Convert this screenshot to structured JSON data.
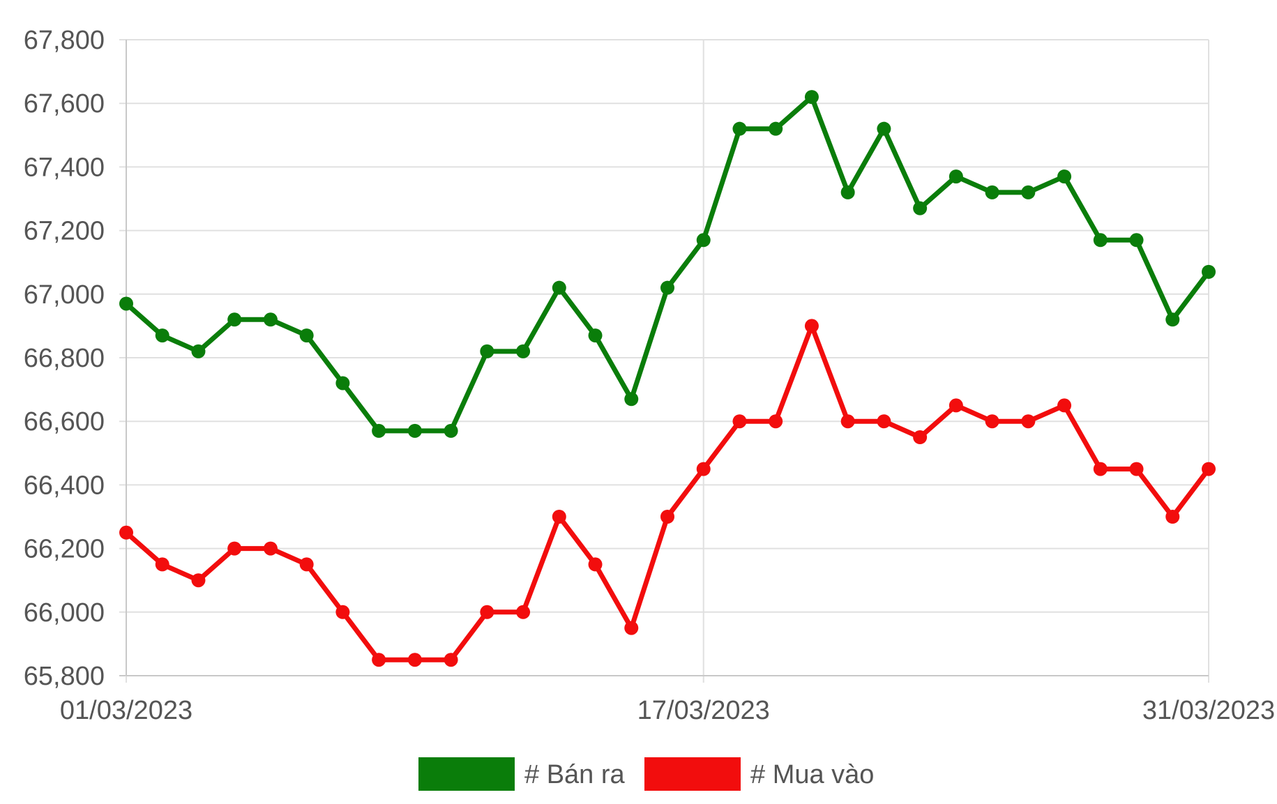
{
  "chart_data": {
    "type": "line",
    "title": "",
    "xlabel": "",
    "ylabel": "",
    "ylim": [
      65800,
      67800
    ],
    "y_ticks": [
      "65,800",
      "66,000",
      "66,200",
      "66,400",
      "66,600",
      "66,800",
      "67,000",
      "67,200",
      "67,400",
      "67,600",
      "67,800"
    ],
    "x_tick_labels": [
      "01/03/2023",
      "17/03/2023",
      "31/03/2023"
    ],
    "x_tick_indices": [
      0,
      16,
      30
    ],
    "grid": true,
    "legend_position": "bottom",
    "series": [
      {
        "name": "# Bán ra",
        "color": "#0a7d0a",
        "values": [
          66970,
          66870,
          66820,
          66920,
          66920,
          66870,
          66720,
          66570,
          66570,
          66570,
          66820,
          66820,
          67020,
          66870,
          66670,
          67020,
          67170,
          67520,
          67520,
          67620,
          67320,
          67520,
          67270,
          67370,
          67320,
          67320,
          67370,
          67170,
          67170,
          66920,
          67070
        ]
      },
      {
        "name": "# Mua vào",
        "color": "#f20d0d",
        "values": [
          66250,
          66150,
          66100,
          66200,
          66200,
          66150,
          66000,
          65850,
          65850,
          65850,
          66000,
          66000,
          66300,
          66150,
          65950,
          66300,
          66450,
          66600,
          66600,
          66900,
          66600,
          66600,
          66550,
          66650,
          66600,
          66600,
          66650,
          66450,
          66450,
          66300,
          66450
        ]
      }
    ]
  }
}
